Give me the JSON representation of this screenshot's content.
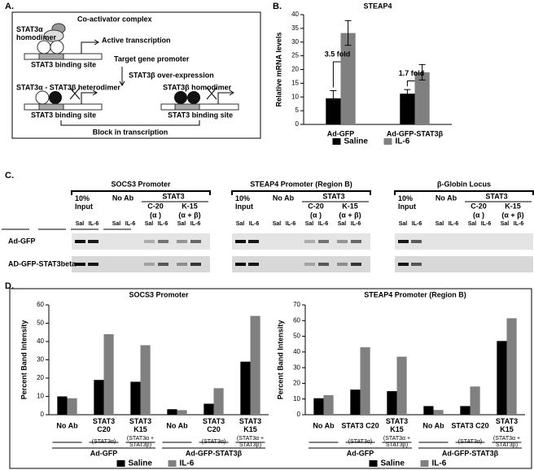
{
  "panel_labels": [
    "A.",
    "B.",
    "C.",
    "D."
  ],
  "diagram": {
    "coactivator": "Co-activator complex",
    "homodimer_a": "STAT3α\nhomodimer",
    "active": "Active transcription",
    "site": "STAT3 binding site",
    "promoter": "Target gene promoter",
    "overexpression": "STAT3β over-expression",
    "heterodimer": "STAT3α - STAT3β heterodimer",
    "homodimer_b": "STAT3β homodimer",
    "block": "Block in transcription"
  },
  "gel": {
    "titles": [
      "SOCS3 Promoter",
      "STEAP4 Promoter (Region B)",
      "β-Globin Locus"
    ],
    "headers": {
      "input": "10%\nInput",
      "no_ab": "No Ab",
      "stat3": "STAT3",
      "c20": "C-20",
      "alpha": "(α )",
      "k15": "K-15",
      "alpha_beta": "(α + β)"
    },
    "lanes": [
      "Sal",
      "IL-6"
    ],
    "rows": [
      "Ad-GFP",
      "AD-GFP-STAT3beta"
    ]
  },
  "chart_data": [
    {
      "type": "bar",
      "title": "STEAP4",
      "ylabel": "Relative mRNA levels",
      "categories": [
        "Ad-GFP",
        "Ad-GFP-STAT3β"
      ],
      "series": [
        {
          "name": "Saline",
          "color": "#000000",
          "values": [
            9.5,
            11.2
          ],
          "errors": [
            2.8,
            1.5
          ]
        },
        {
          "name": "IL-6",
          "color": "#808080",
          "values": [
            33.3,
            19.0
          ],
          "errors": [
            4.5,
            2.8
          ]
        }
      ],
      "annotations": [
        "3.5 fold",
        "1.7 fold"
      ],
      "ylim": [
        0,
        40
      ],
      "yticks": [
        0,
        5,
        10,
        15,
        20,
        25,
        30,
        35,
        40
      ],
      "legend": "bottom"
    },
    {
      "type": "bar",
      "title": "SOCS3 Promoter",
      "ylabel": "Percent Band Intensity",
      "categories": [
        "No Ab",
        "STAT3\nC20",
        "STAT3\nK15",
        "No Ab",
        "STAT3\nC20",
        "STAT3\nK15"
      ],
      "category_notes": [
        null,
        "(STAT3α)",
        "(STAT3α +\nSTAT3β)",
        null,
        "(STAT3α)",
        "(STAT3α +\nSTAT3β)"
      ],
      "groups": [
        "Ad-GFP",
        "Ad-GFP-STAT3β"
      ],
      "series": [
        {
          "name": "Saline",
          "color": "#000000",
          "values": [
            10,
            19,
            18,
            3,
            6,
            29
          ]
        },
        {
          "name": "IL-6",
          "color": "#808080",
          "values": [
            9,
            44,
            38,
            2.5,
            14.5,
            54
          ]
        }
      ],
      "ylim": [
        0,
        60
      ],
      "yticks": [
        0,
        10,
        20,
        30,
        40,
        50,
        60
      ],
      "legend": "bottom"
    },
    {
      "type": "bar",
      "title": "STEAP4 Promoter (Region B)",
      "ylabel": "Percent Band Intensity",
      "categories": [
        "No Ab",
        "STAT3 C20",
        "STAT3\nK15",
        "No Ab",
        "STAT3 C20",
        "STAT3\nK15"
      ],
      "category_notes": [
        null,
        "(STAT3α)",
        "(STAT3α +\nSTAT3β)",
        null,
        "(STAT3α)",
        "(STAT3α +\nSTAT3β)"
      ],
      "groups": [
        "Ad-GFP",
        "Ad-GFP-STAT3β"
      ],
      "series": [
        {
          "name": "Saline",
          "color": "#000000",
          "values": [
            10.5,
            16,
            15,
            5.5,
            5.5,
            47
          ]
        },
        {
          "name": "IL-6",
          "color": "#808080",
          "values": [
            12.5,
            43,
            37,
            3,
            18,
            61.5
          ]
        }
      ],
      "ylim": [
        0,
        70
      ],
      "yticks": [
        0,
        10,
        20,
        30,
        40,
        50,
        60,
        70
      ],
      "legend": "bottom"
    }
  ]
}
